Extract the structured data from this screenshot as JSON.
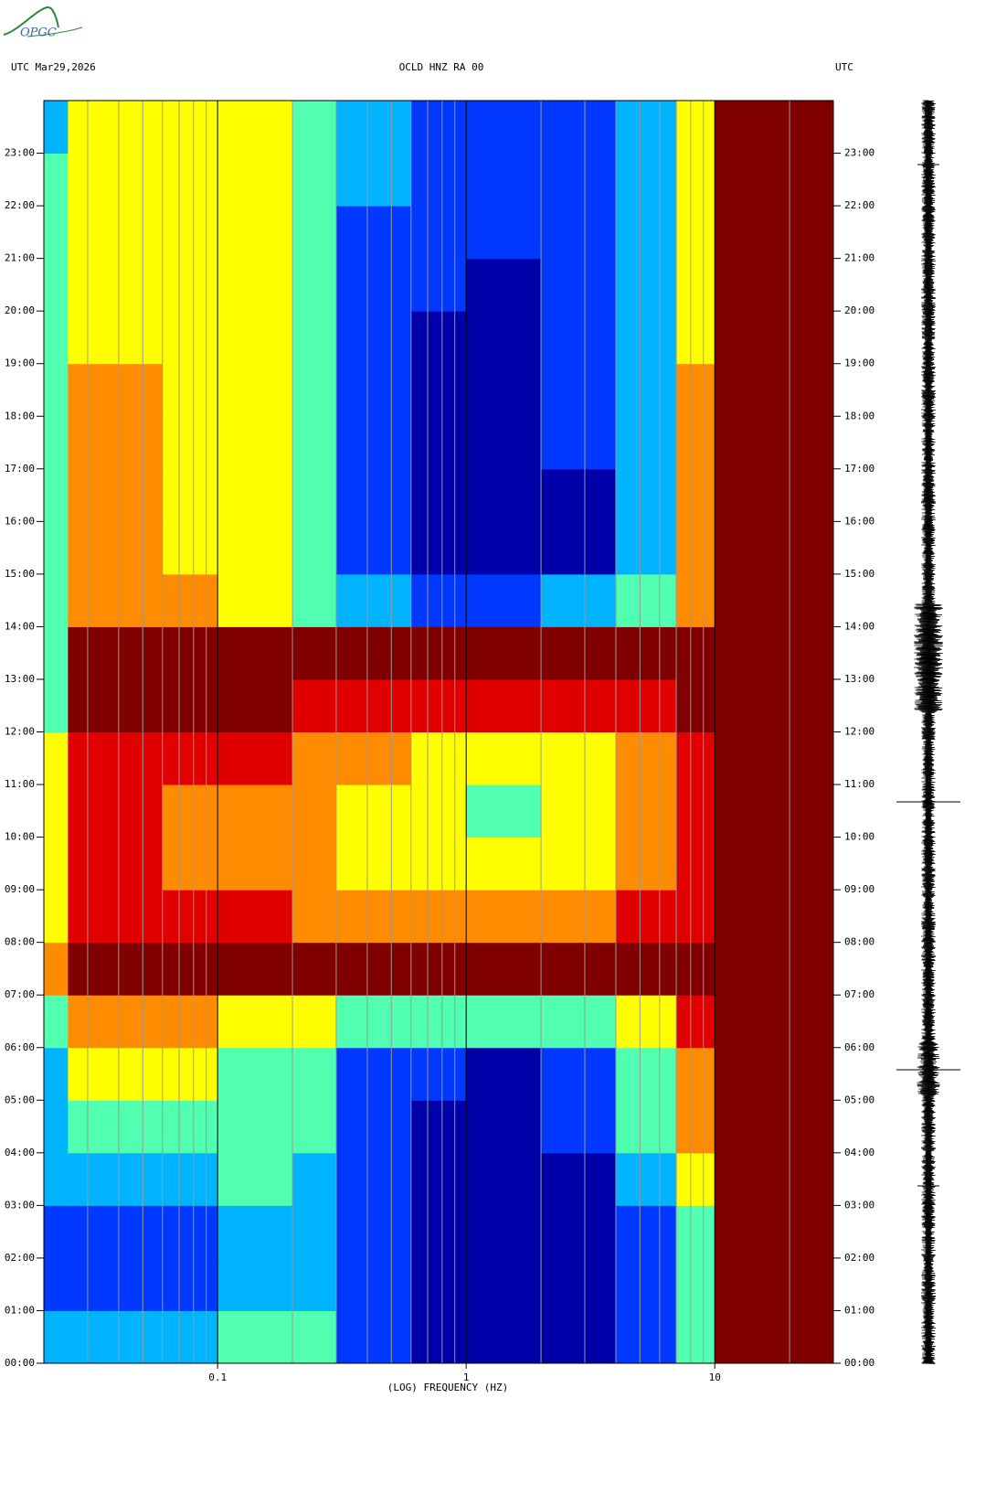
{
  "logo": "OPGC",
  "chart_data": {
    "type": "spectrogram",
    "title": "OCLD HNZ RA 00",
    "date_label": "UTC  Mar29,2026",
    "right_label": "UTC",
    "x_label": "(LOG) FREQUENCY (HZ)",
    "x_log": true,
    "xlim": [
      0.02,
      30
    ],
    "xticks": [
      0.1,
      1,
      10
    ],
    "xgrid_minor": [
      0.02,
      0.03,
      0.04,
      0.05,
      0.06,
      0.07,
      0.08,
      0.09,
      0.2,
      0.3,
      0.4,
      0.5,
      0.6,
      0.7,
      0.8,
      0.9,
      2,
      3,
      4,
      5,
      6,
      7,
      8,
      9,
      20
    ],
    "ylim": [
      0,
      24
    ],
    "yticks": [
      {
        "value": 0,
        "label": "00:00"
      },
      {
        "value": 1,
        "label": "01:00"
      },
      {
        "value": 2,
        "label": "02:00"
      },
      {
        "value": 3,
        "label": "03:00"
      },
      {
        "value": 4,
        "label": "04:00"
      },
      {
        "value": 5,
        "label": "05:00"
      },
      {
        "value": 6,
        "label": "06:00"
      },
      {
        "value": 7,
        "label": "07:00"
      },
      {
        "value": 8,
        "label": "08:00"
      },
      {
        "value": 9,
        "label": "09:00"
      },
      {
        "value": 10,
        "label": "10:00"
      },
      {
        "value": 11,
        "label": "11:00"
      },
      {
        "value": 12,
        "label": "12:00"
      },
      {
        "value": 13,
        "label": "13:00"
      },
      {
        "value": 14,
        "label": "14:00"
      },
      {
        "value": 15,
        "label": "15:00"
      },
      {
        "value": 16,
        "label": "16:00"
      },
      {
        "value": 17,
        "label": "17:00"
      },
      {
        "value": 18,
        "label": "18:00"
      },
      {
        "value": 19,
        "label": "19:00"
      },
      {
        "value": 20,
        "label": "20:00"
      },
      {
        "value": 21,
        "label": "21:00"
      },
      {
        "value": 22,
        "label": "22:00"
      },
      {
        "value": 23,
        "label": "23:00"
      }
    ],
    "freq_edges": [
      0.02,
      0.025,
      0.06,
      0.1,
      0.2,
      0.3,
      0.6,
      1,
      2,
      4,
      7,
      10,
      30
    ],
    "time_edges": [
      0,
      1,
      2,
      3,
      4,
      5,
      6,
      7,
      8,
      9,
      10,
      11,
      12,
      13,
      14,
      15,
      16,
      17,
      18,
      19,
      20,
      21,
      22,
      23,
      24
    ],
    "colors": [
      "#0000a8",
      "#0038ff",
      "#00b4ff",
      "#50ffb0",
      "#ffff00",
      "#ff8c00",
      "#e00000",
      "#800000"
    ],
    "z": [
      [
        2,
        2,
        2,
        3,
        3,
        1,
        0,
        0,
        0,
        1,
        3,
        7
      ],
      [
        1,
        1,
        1,
        2,
        2,
        1,
        0,
        0,
        0,
        1,
        3,
        7
      ],
      [
        1,
        1,
        1,
        2,
        2,
        1,
        0,
        0,
        0,
        1,
        3,
        7
      ],
      [
        2,
        2,
        2,
        3,
        2,
        1,
        0,
        0,
        0,
        2,
        4,
        7
      ],
      [
        2,
        3,
        3,
        3,
        3,
        1,
        0,
        0,
        1,
        3,
        5,
        7
      ],
      [
        2,
        4,
        4,
        3,
        3,
        1,
        1,
        0,
        1,
        3,
        5,
        7
      ],
      [
        3,
        5,
        5,
        4,
        4,
        3,
        3,
        3,
        3,
        4,
        6,
        7
      ],
      [
        5,
        7,
        7,
        7,
        7,
        7,
        7,
        7,
        7,
        7,
        7,
        7
      ],
      [
        4,
        6,
        6,
        6,
        5,
        5,
        5,
        5,
        5,
        6,
        6,
        7
      ],
      [
        4,
        6,
        5,
        5,
        5,
        4,
        4,
        4,
        4,
        5,
        6,
        7
      ],
      [
        4,
        6,
        5,
        5,
        5,
        4,
        4,
        3,
        4,
        5,
        6,
        7
      ],
      [
        4,
        6,
        6,
        6,
        5,
        5,
        4,
        4,
        4,
        5,
        6,
        7
      ],
      [
        3,
        7,
        7,
        7,
        6,
        6,
        6,
        6,
        6,
        6,
        7,
        7
      ],
      [
        3,
        7,
        7,
        7,
        7,
        7,
        7,
        7,
        7,
        7,
        7,
        7
      ],
      [
        3,
        5,
        5,
        4,
        3,
        2,
        1,
        1,
        2,
        3,
        5,
        7
      ],
      [
        3,
        5,
        4,
        4,
        3,
        1,
        0,
        0,
        0,
        2,
        5,
        7
      ],
      [
        3,
        5,
        4,
        4,
        3,
        1,
        0,
        0,
        0,
        2,
        5,
        7
      ],
      [
        3,
        5,
        4,
        4,
        3,
        1,
        0,
        0,
        1,
        2,
        5,
        7
      ],
      [
        3,
        5,
        4,
        4,
        3,
        1,
        0,
        0,
        1,
        2,
        5,
        7
      ],
      [
        3,
        4,
        4,
        4,
        3,
        1,
        0,
        0,
        1,
        2,
        4,
        7
      ],
      [
        3,
        4,
        4,
        4,
        3,
        1,
        1,
        0,
        1,
        2,
        4,
        7
      ],
      [
        3,
        4,
        4,
        4,
        3,
        1,
        1,
        1,
        1,
        2,
        4,
        7
      ],
      [
        3,
        4,
        4,
        4,
        3,
        2,
        1,
        1,
        1,
        2,
        4,
        7
      ],
      [
        2,
        4,
        4,
        4,
        3,
        2,
        1,
        1,
        1,
        2,
        4,
        7
      ]
    ]
  }
}
